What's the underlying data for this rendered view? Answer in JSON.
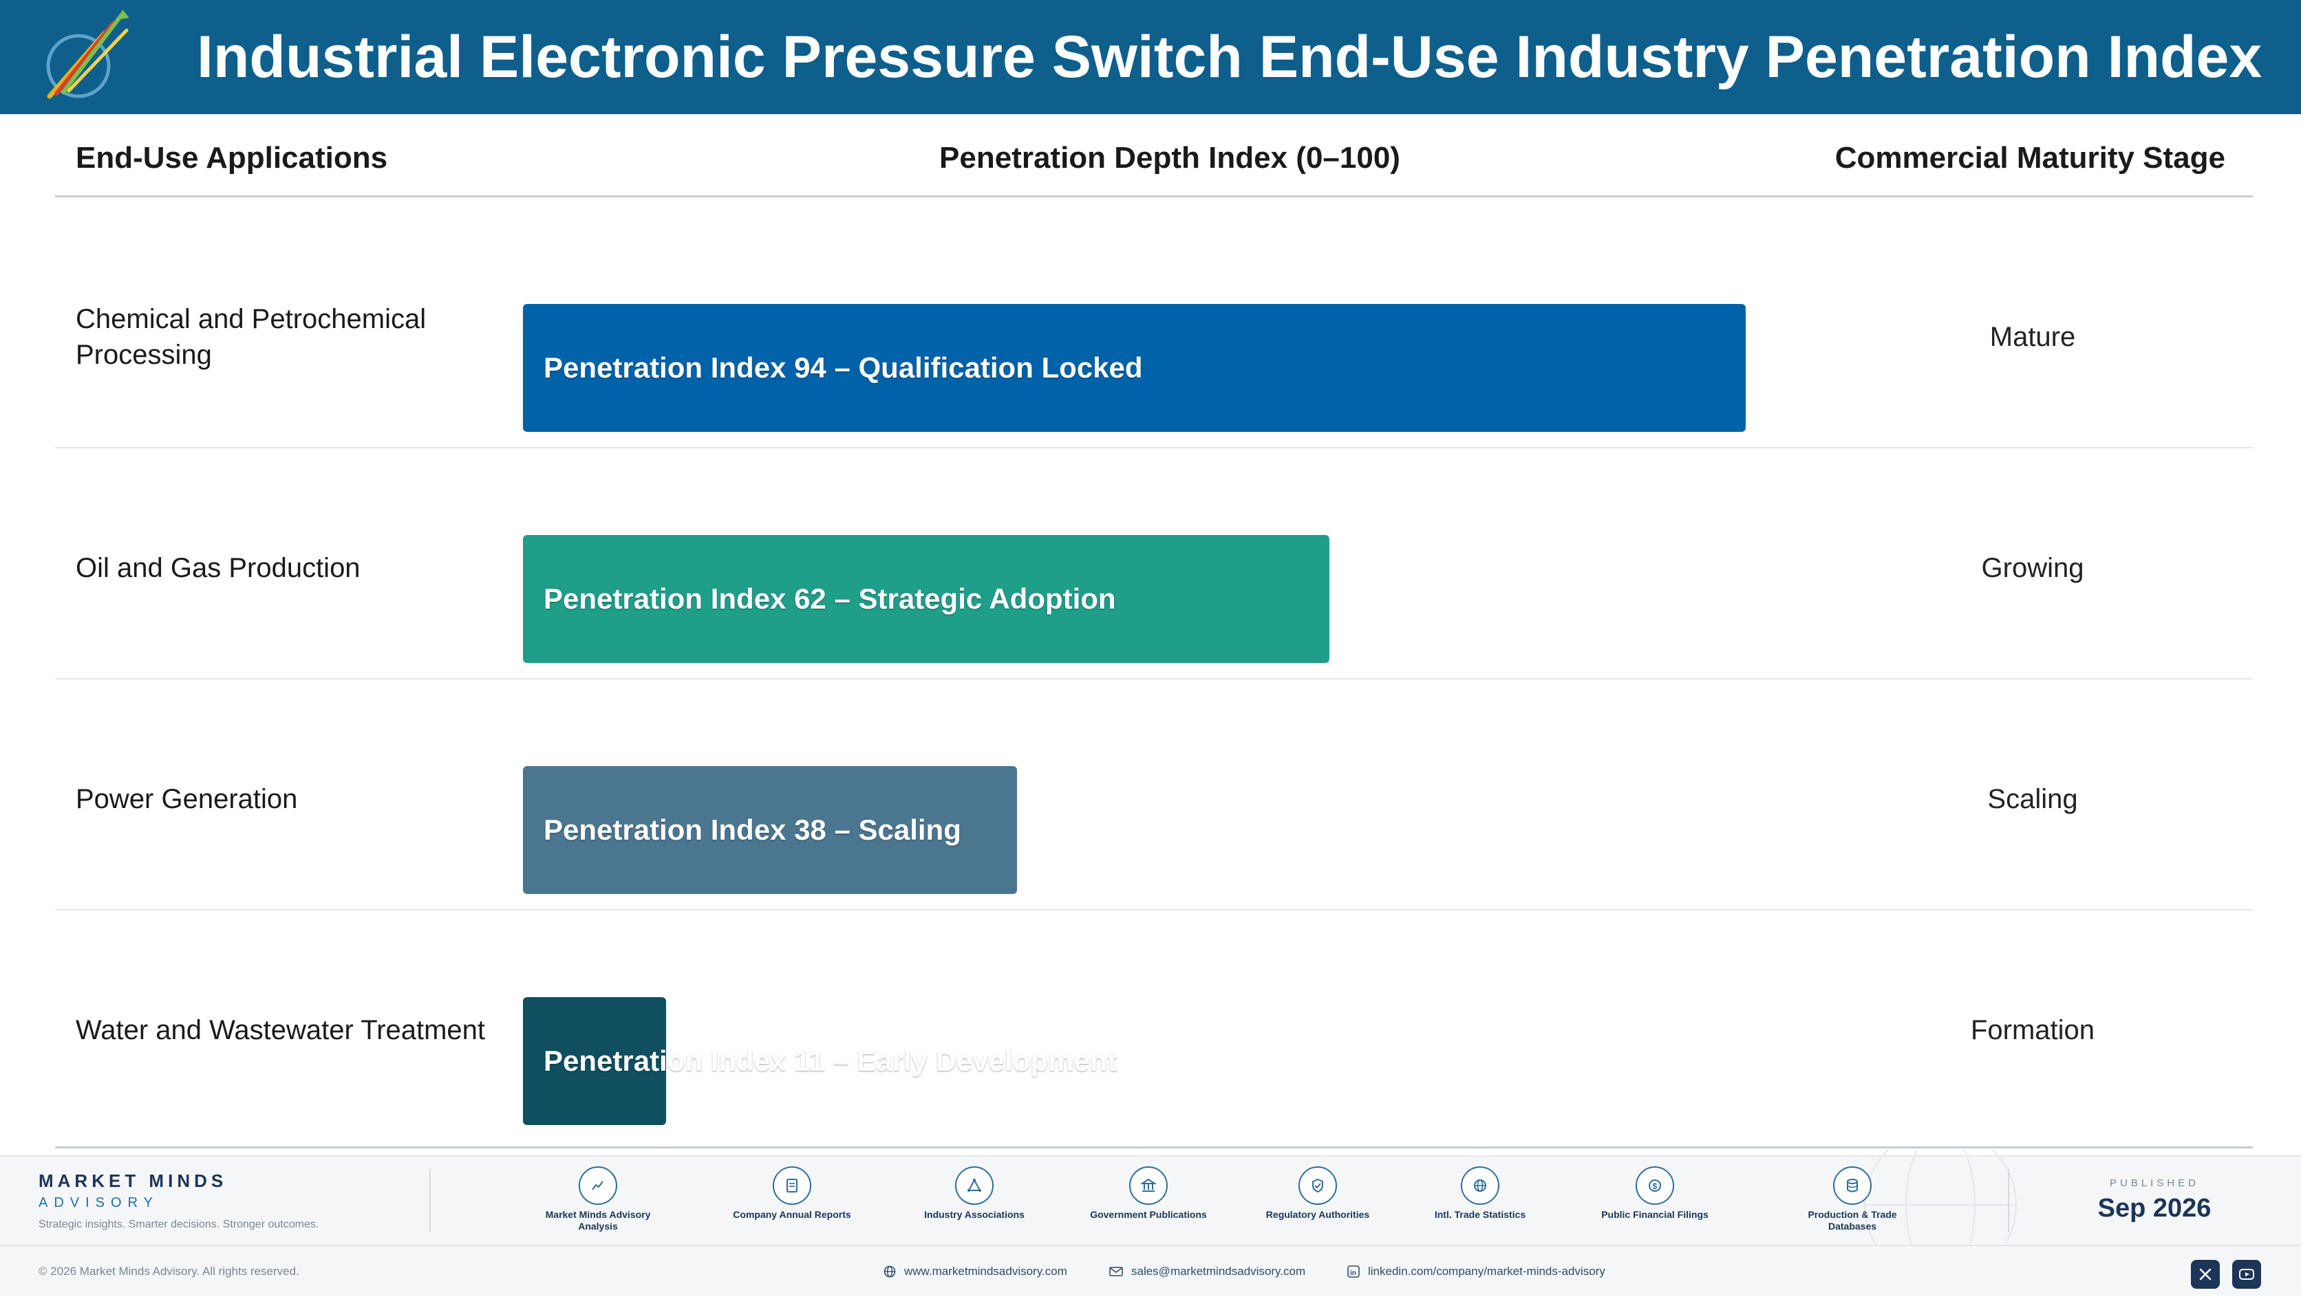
{
  "header": {
    "title": "Industrial Electronic Pressure Switch End-Use Industry Penetration Index",
    "logo_text": "Market Minds Advisory"
  },
  "columns": {
    "applications": "End-Use Applications",
    "penetration": "Penetration Depth Index (0–100)",
    "stage": "Commercial Maturity Stage"
  },
  "colors": {
    "header_bg": "#0e5f8c",
    "bar_1": "#0062a8",
    "bar_2": "#1f9e8a",
    "bar_3": "#4b7690",
    "bar_4": "#0f4f5f"
  },
  "chart_data": {
    "type": "bar",
    "orientation": "horizontal",
    "title": "Industrial Electronic Pressure Switch End-Use Industry Penetration Index",
    "xlabel": "Penetration Depth Index (0–100)",
    "xlim": [
      0,
      100
    ],
    "categories": [
      "Chemical and Petrochemical Processing",
      "Oil and Gas Production",
      "Power Generation",
      "Water and Wastewater Treatment"
    ],
    "values": [
      94,
      62,
      38,
      11
    ],
    "bar_labels": [
      "Penetration Index 94 – Qualification Locked",
      "Penetration Index 62 – Strategic Adoption",
      "Penetration Index 38 – Scaling",
      "Penetration Index 11 – Early Development"
    ],
    "stages": [
      "Mature",
      "Growing",
      "Scaling",
      "Formation"
    ],
    "colors": [
      "#0062a8",
      "#1f9e8a",
      "#4b7690",
      "#0f4f5f"
    ],
    "grid": false
  },
  "footer": {
    "brand_name": "MARKET MINDS",
    "brand_sub": "ADVISORY",
    "tagline": "Strategic insights. Smarter decisions. Stronger outcomes.",
    "sources": [
      {
        "label": "Market Minds Advisory Analysis",
        "icon": "trend-chart-icon"
      },
      {
        "label": "Company Annual Reports",
        "icon": "document-icon"
      },
      {
        "label": "Industry Associations",
        "icon": "network-icon"
      },
      {
        "label": "Government Publications",
        "icon": "government-building-icon"
      },
      {
        "label": "Regulatory Authorities",
        "icon": "shield-check-icon"
      },
      {
        "label": "Intl. Trade Statistics",
        "icon": "globe-icon"
      },
      {
        "label": "Public Financial Filings",
        "icon": "dollar-coin-icon"
      },
      {
        "label": "Production & Trade Databases",
        "icon": "database-icon"
      }
    ],
    "published_label": "PUBLISHED",
    "published_date": "Sep 2026",
    "copyright": "© 2026 Market Minds Advisory. All rights reserved.",
    "website": "www.marketmindsadvisory.com",
    "email": "sales@marketmindsadvisory.com",
    "linkedin": "linkedin.com/company/market-minds-advisory"
  }
}
